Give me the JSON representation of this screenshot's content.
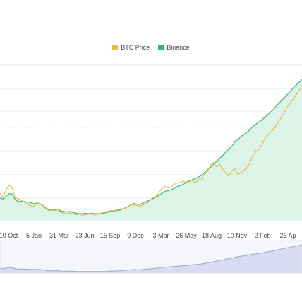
{
  "legend": {
    "btc_label": "BTC Price",
    "binance_label": "Binance"
  },
  "colors": {
    "btc": "#e7bc4b",
    "binance": "#31b876",
    "binance_fill": "#d5f2e3",
    "navigator_fill": "#d8dbf1",
    "navigator_line": "#9ea4d8",
    "grid": "#e8e8e8"
  },
  "chart_data": {
    "type": "line",
    "title": "",
    "xlabel": "",
    "ylabel": "",
    "grid": true,
    "legend_position": "top-center",
    "x_ticks": [
      "10 Oct",
      "5 Jan",
      "31 Mar",
      "23 Jun",
      "15 Sep",
      "9 Dec",
      "3 Mar",
      "26 May",
      "18 Aug",
      "10 Nov",
      "2 Feb",
      "26 Ap"
    ],
    "series": [
      {
        "name": "BTC Price",
        "values": [
          62,
          54,
          70,
          81,
          74,
          52,
          50,
          47,
          43,
          38,
          35,
          33,
          41,
          40,
          35,
          28,
          24,
          25,
          24,
          26,
          20,
          18,
          17,
          19,
          16,
          15,
          16,
          14,
          15,
          16,
          17,
          14,
          16,
          18,
          20,
          22,
          24,
          24,
          25,
          27,
          28,
          29,
          33,
          37,
          36,
          35,
          34,
          37,
          40,
          46,
          52,
          55,
          62,
          73,
          78,
          75,
          76,
          82,
          85,
          86,
          89,
          87,
          91,
          90,
          85,
          93,
          92,
          105,
          111,
          125,
          131,
          121,
          127,
          116,
          108,
          100,
          112,
          118,
          104,
          108,
          114,
          118,
          132,
          148,
          155,
          160,
          172,
          186,
          193,
          200,
          206,
          218,
          228,
          240,
          252,
          261,
          270,
          280,
          290,
          303
        ]
      },
      {
        "name": "Binance",
        "values": [
          52,
          50,
          56,
          62,
          60,
          48,
          45,
          44,
          44,
          43,
          42,
          39,
          41,
          40,
          36,
          30,
          26,
          25,
          26,
          27,
          23,
          22,
          21,
          22,
          20,
          18,
          17,
          17,
          18,
          17,
          18,
          17,
          17,
          18,
          18,
          20,
          22,
          23,
          24,
          25,
          27,
          30,
          33,
          38,
          40,
          38,
          38,
          41,
          44,
          47,
          50,
          54,
          57,
          62,
          67,
          68,
          70,
          73,
          77,
          79,
          82,
          86,
          89,
          92,
          95,
          98,
          102,
          108,
          115,
          120,
          127,
          133,
          140,
          146,
          154,
          160,
          167,
          176,
          182,
          188,
          193,
          198,
          204,
          211,
          216,
          221,
          226,
          232,
          238,
          244,
          251,
          259,
          266,
          273,
          280,
          287,
          295,
          302,
          308,
          315
        ]
      }
    ],
    "navigator_values": [
      52,
      50,
      56,
      62,
      60,
      48,
      45,
      44,
      44,
      43,
      42,
      39,
      41,
      40,
      36,
      30,
      26,
      25,
      26,
      27,
      23,
      22,
      21,
      22,
      20,
      18,
      17,
      17,
      18,
      17,
      18,
      17,
      17,
      18,
      18,
      20,
      22,
      23,
      24,
      25,
      27,
      30,
      33,
      38,
      40,
      38,
      38,
      41,
      44,
      47,
      50,
      54,
      57,
      62,
      67,
      68,
      70,
      73,
      77,
      79,
      82,
      86,
      89,
      92,
      95,
      98,
      102,
      108,
      115,
      120,
      127,
      133,
      140,
      146,
      154,
      160,
      167,
      176,
      182,
      188,
      193,
      198,
      204,
      211,
      216,
      221,
      226,
      232,
      238,
      244,
      251,
      259,
      266,
      273,
      280,
      287,
      295,
      302,
      308,
      315
    ]
  }
}
